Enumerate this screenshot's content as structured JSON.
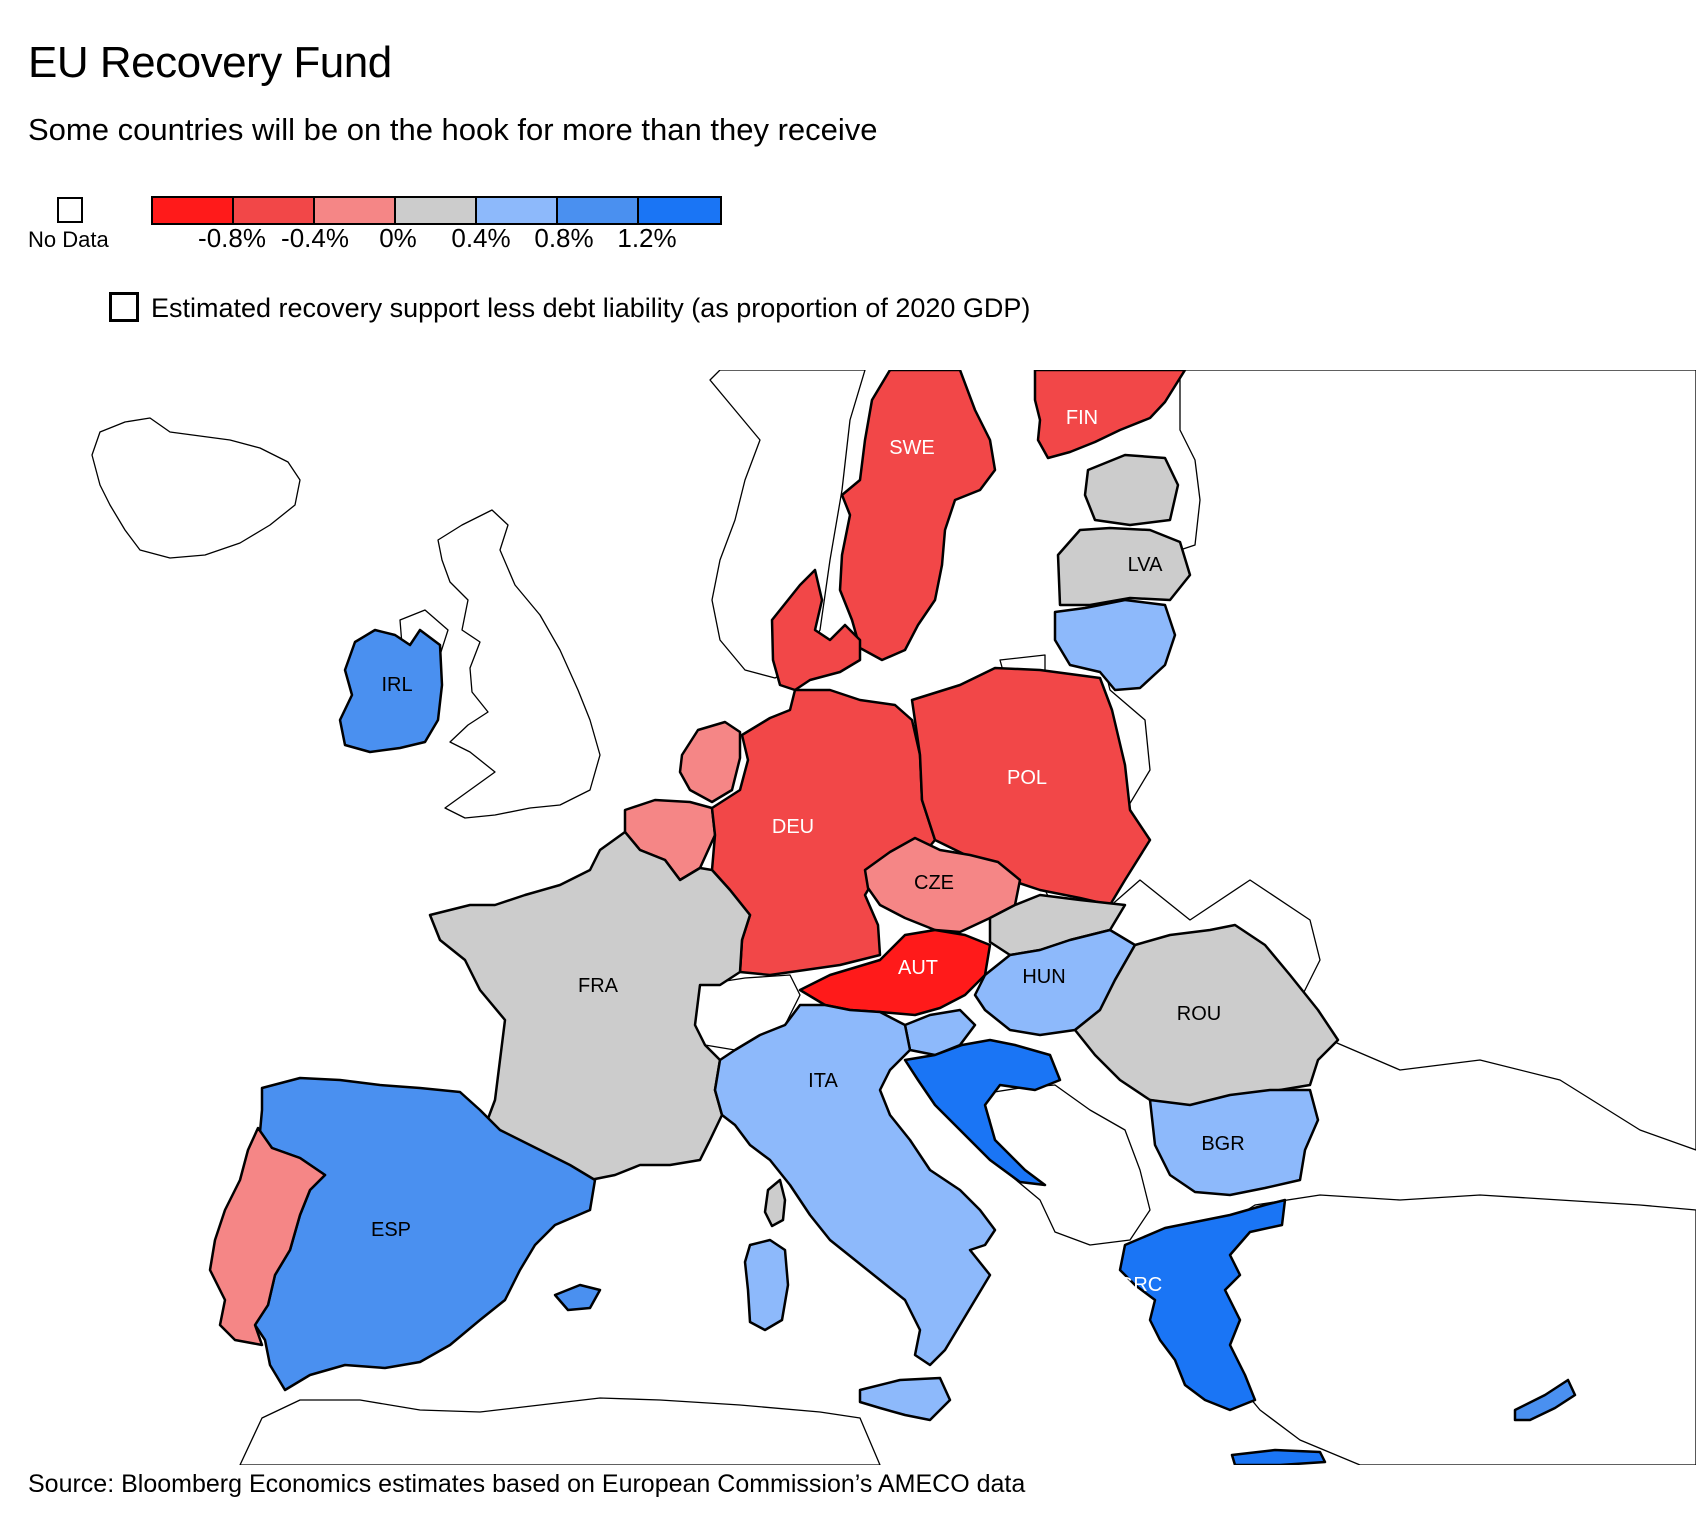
{
  "header": {
    "title": "EU Recovery Fund",
    "subtitle": "Some countries will be on the hook for more than they receive"
  },
  "legend": {
    "no_data_label": "No Data",
    "scale_colors": [
      "#ff1a1a",
      "#f24748",
      "#f58686",
      "#cccccc",
      "#8db9fb",
      "#4a90f0",
      "#1a75f5"
    ],
    "ticks": [
      "-0.8%",
      "-0.4%",
      "0%",
      "0.4%",
      "0.8%",
      "1.2%"
    ],
    "measure_label": "Estimated recovery support less debt liability (as proportion of 2020 GDP)"
  },
  "map_data": {
    "countries": [
      {
        "code": "SWE",
        "label": "SWE",
        "bin": 1
      },
      {
        "code": "FIN",
        "label": "FIN",
        "bin": 1
      },
      {
        "code": "DNK",
        "label": "",
        "bin": 1
      },
      {
        "code": "DEU",
        "label": "DEU",
        "bin": 1
      },
      {
        "code": "POL",
        "label": "POL",
        "bin": 1
      },
      {
        "code": "AUT",
        "label": "AUT",
        "bin": 0
      },
      {
        "code": "CZE",
        "label": "CZE",
        "bin": 2
      },
      {
        "code": "NLD",
        "label": "",
        "bin": 2
      },
      {
        "code": "BEL",
        "label": "",
        "bin": 2
      },
      {
        "code": "PRT",
        "label": "",
        "bin": 2
      },
      {
        "code": "EST",
        "label": "",
        "bin": 3
      },
      {
        "code": "LVA",
        "label": "LVA",
        "bin": 3
      },
      {
        "code": "FRA",
        "label": "FRA",
        "bin": 3
      },
      {
        "code": "SVK",
        "label": "",
        "bin": 3
      },
      {
        "code": "ROU",
        "label": "ROU",
        "bin": 3
      },
      {
        "code": "LTU",
        "label": "",
        "bin": 4
      },
      {
        "code": "ITA",
        "label": "ITA",
        "bin": 4
      },
      {
        "code": "HUN",
        "label": "HUN",
        "bin": 4
      },
      {
        "code": "BGR",
        "label": "BGR",
        "bin": 4
      },
      {
        "code": "SVN",
        "label": "",
        "bin": 4
      },
      {
        "code": "CYP",
        "label": "",
        "bin": 5
      },
      {
        "code": "IRL",
        "label": "IRL",
        "bin": 5
      },
      {
        "code": "ESP",
        "label": "ESP",
        "bin": 5
      },
      {
        "code": "GRC",
        "label": "GRC",
        "bin": 6
      },
      {
        "code": "HRV",
        "label": "",
        "bin": 6
      }
    ]
  },
  "footer": {
    "source": "Source: Bloomberg Economics estimates based on European Commission’s AMECO data"
  }
}
